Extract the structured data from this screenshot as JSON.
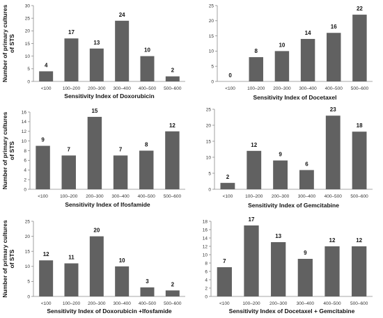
{
  "chart_data": [
    {
      "type": "bar",
      "categories": [
        "<100",
        "100–200",
        "200–300",
        "300–400",
        "400–500",
        "500–600"
      ],
      "values": [
        4,
        17,
        13,
        24,
        10,
        2
      ],
      "xlabel": "Sensitivity Index of Doxorubicin",
      "ylabel": "Number of primary cultures of STS",
      "ylim": [
        0,
        30
      ],
      "yticks": [
        0,
        5,
        10,
        15,
        20,
        25,
        30
      ],
      "grid": false,
      "bar_color": "#616161"
    },
    {
      "type": "bar",
      "categories": [
        "<100",
        "100–200",
        "200–300",
        "300–400",
        "400–500",
        "500–600"
      ],
      "values": [
        0,
        8,
        10,
        14,
        16,
        22
      ],
      "xlabel": "Sensitivity Index of Docetaxel",
      "ylabel": "",
      "ylim": [
        0,
        25
      ],
      "yticks": [
        0,
        5,
        10,
        15,
        20,
        25
      ],
      "grid": false,
      "bar_color": "#616161"
    },
    {
      "type": "bar",
      "categories": [
        "<100",
        "100–200",
        "200–300",
        "300–400",
        "400–500",
        "500–600"
      ],
      "values": [
        9,
        7,
        15,
        7,
        8,
        12
      ],
      "xlabel": "Sensitivity Index of  Ifosfamide",
      "ylabel": "Number of primary cultures of STS",
      "ylim": [
        0,
        16
      ],
      "yticks": [
        0,
        2,
        4,
        6,
        8,
        10,
        12,
        14,
        16
      ],
      "grid": false,
      "bar_color": "#616161"
    },
    {
      "type": "bar",
      "categories": [
        "<100",
        "100–200",
        "200–300",
        "300–400",
        "400–500",
        "500–600"
      ],
      "values": [
        2,
        12,
        9,
        6,
        23,
        18
      ],
      "xlabel": "Sensitivity Index of Gemcitabine",
      "ylabel": "",
      "ylim": [
        0,
        25
      ],
      "yticks": [
        0,
        5,
        10,
        15,
        20,
        25
      ],
      "grid": false,
      "bar_color": "#616161"
    },
    {
      "type": "bar",
      "categories": [
        "<100",
        "100–200",
        "200–300",
        "300–400",
        "400–500",
        "500–600"
      ],
      "values": [
        12,
        11,
        20,
        10,
        3,
        2
      ],
      "xlabel": "Sensitivity Index of  Doxorubicin  +Ifosfamide",
      "ylabel": "Number of primary cultures of STS",
      "ylim": [
        0,
        25
      ],
      "yticks": [
        0,
        5,
        10,
        15,
        20,
        25
      ],
      "grid": false,
      "bar_color": "#616161"
    },
    {
      "type": "bar",
      "categories": [
        "<100",
        "100–200",
        "200–300",
        "300–400",
        "400–500",
        "500–600"
      ],
      "values": [
        7,
        17,
        13,
        9,
        12,
        12
      ],
      "xlabel": "Sensitivity Index of Docetaxel + Gemcitabine",
      "ylabel": "",
      "ylim": [
        0,
        18
      ],
      "yticks": [
        0,
        2,
        4,
        6,
        8,
        10,
        12,
        14,
        16,
        18
      ],
      "grid": false,
      "bar_color": "#616161"
    }
  ]
}
